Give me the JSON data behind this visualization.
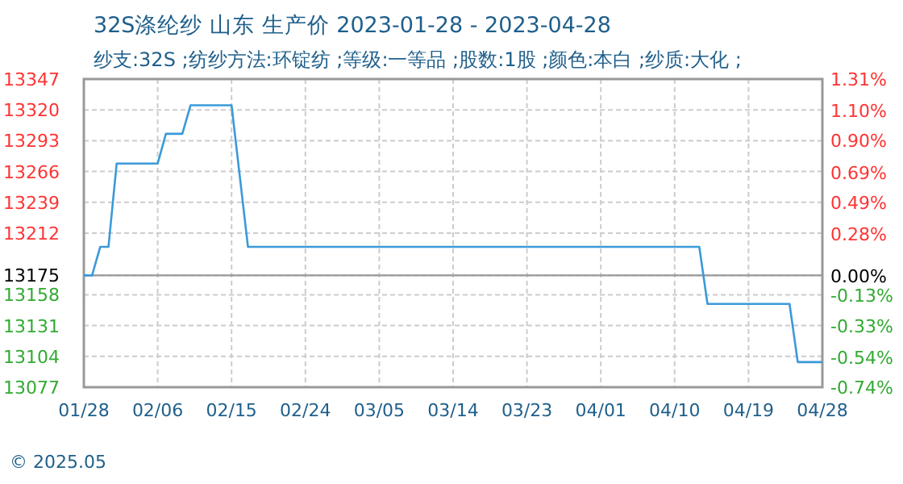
{
  "chart_data": {
    "type": "step",
    "title": "32S涤纶纱 山东 生产价 2023-01-28 - 2023-04-28",
    "subtitle": "纱支:32S ;纺纱方法:环锭纺 ;等级:一等品 ;股数:1股 ;颜色:本白 ;纱质:大化 ;",
    "annotations": [
      "© 2025.05"
    ],
    "x": [
      "2023-01-28",
      "2023-01-29",
      "2023-01-30",
      "2023-01-31",
      "2023-02-01",
      "2023-02-06",
      "2023-02-07",
      "2023-02-09",
      "2023-02-10",
      "2023-02-15",
      "2023-02-17",
      "2023-04-13",
      "2023-04-14",
      "2023-04-24",
      "2023-04-25",
      "2023-04-28"
    ],
    "series": [
      {
        "color": "#3a9ad9",
        "values": [
          13175,
          13175,
          13200,
          13200,
          13273,
          13273,
          13299,
          13299,
          13324,
          13324,
          13200,
          13200,
          13150,
          13150,
          13099,
          13099
        ]
      }
    ],
    "xlim": [
      "2023-01-28",
      "2023-04-28"
    ],
    "xticks": [
      {
        "value": "2023-01-28",
        "label": "01/28"
      },
      {
        "value": "2023-02-06",
        "label": "02/06"
      },
      {
        "value": "2023-02-15",
        "label": "02/15"
      },
      {
        "value": "2023-02-24",
        "label": "02/24"
      },
      {
        "value": "2023-03-05",
        "label": "03/05"
      },
      {
        "value": "2023-03-14",
        "label": "03/14"
      },
      {
        "value": "2023-03-23",
        "label": "03/23"
      },
      {
        "value": "2023-04-01",
        "label": "04/01"
      },
      {
        "value": "2023-04-10",
        "label": "04/10"
      },
      {
        "value": "2023-04-19",
        "label": "04/19"
      },
      {
        "value": "2023-04-28",
        "label": "04/28"
      }
    ],
    "ylim": [
      13077,
      13347
    ],
    "yticks": [
      13347,
      13320,
      13293,
      13266,
      13239,
      13212,
      13175,
      13158,
      13131,
      13104,
      13077
    ],
    "y2lim": [
      -0.74,
      1.31
    ],
    "y2ticks": [
      {
        "value": 1.31,
        "label": "1.31%"
      },
      {
        "value": 1.1,
        "label": "1.10%"
      },
      {
        "value": 0.9,
        "label": "0.90%"
      },
      {
        "value": 0.69,
        "label": "0.69%"
      },
      {
        "value": 0.49,
        "label": "0.49%"
      },
      {
        "value": 0.28,
        "label": "0.28%"
      },
      {
        "value": 0,
        "label": "0.00%"
      },
      {
        "value": -0.13,
        "label": "-0.13%"
      },
      {
        "value": -0.33,
        "label": "-0.33%"
      },
      {
        "value": -0.54,
        "label": "-0.54%"
      },
      {
        "value": -0.74,
        "label": "-0.74%"
      }
    ],
    "ref_lines": [
      {
        "axis": "y",
        "value": 13175,
        "color": "#999999",
        "line_style": "solid"
      }
    ],
    "grid": true,
    "marker": "none",
    "line_style": "solid"
  }
}
